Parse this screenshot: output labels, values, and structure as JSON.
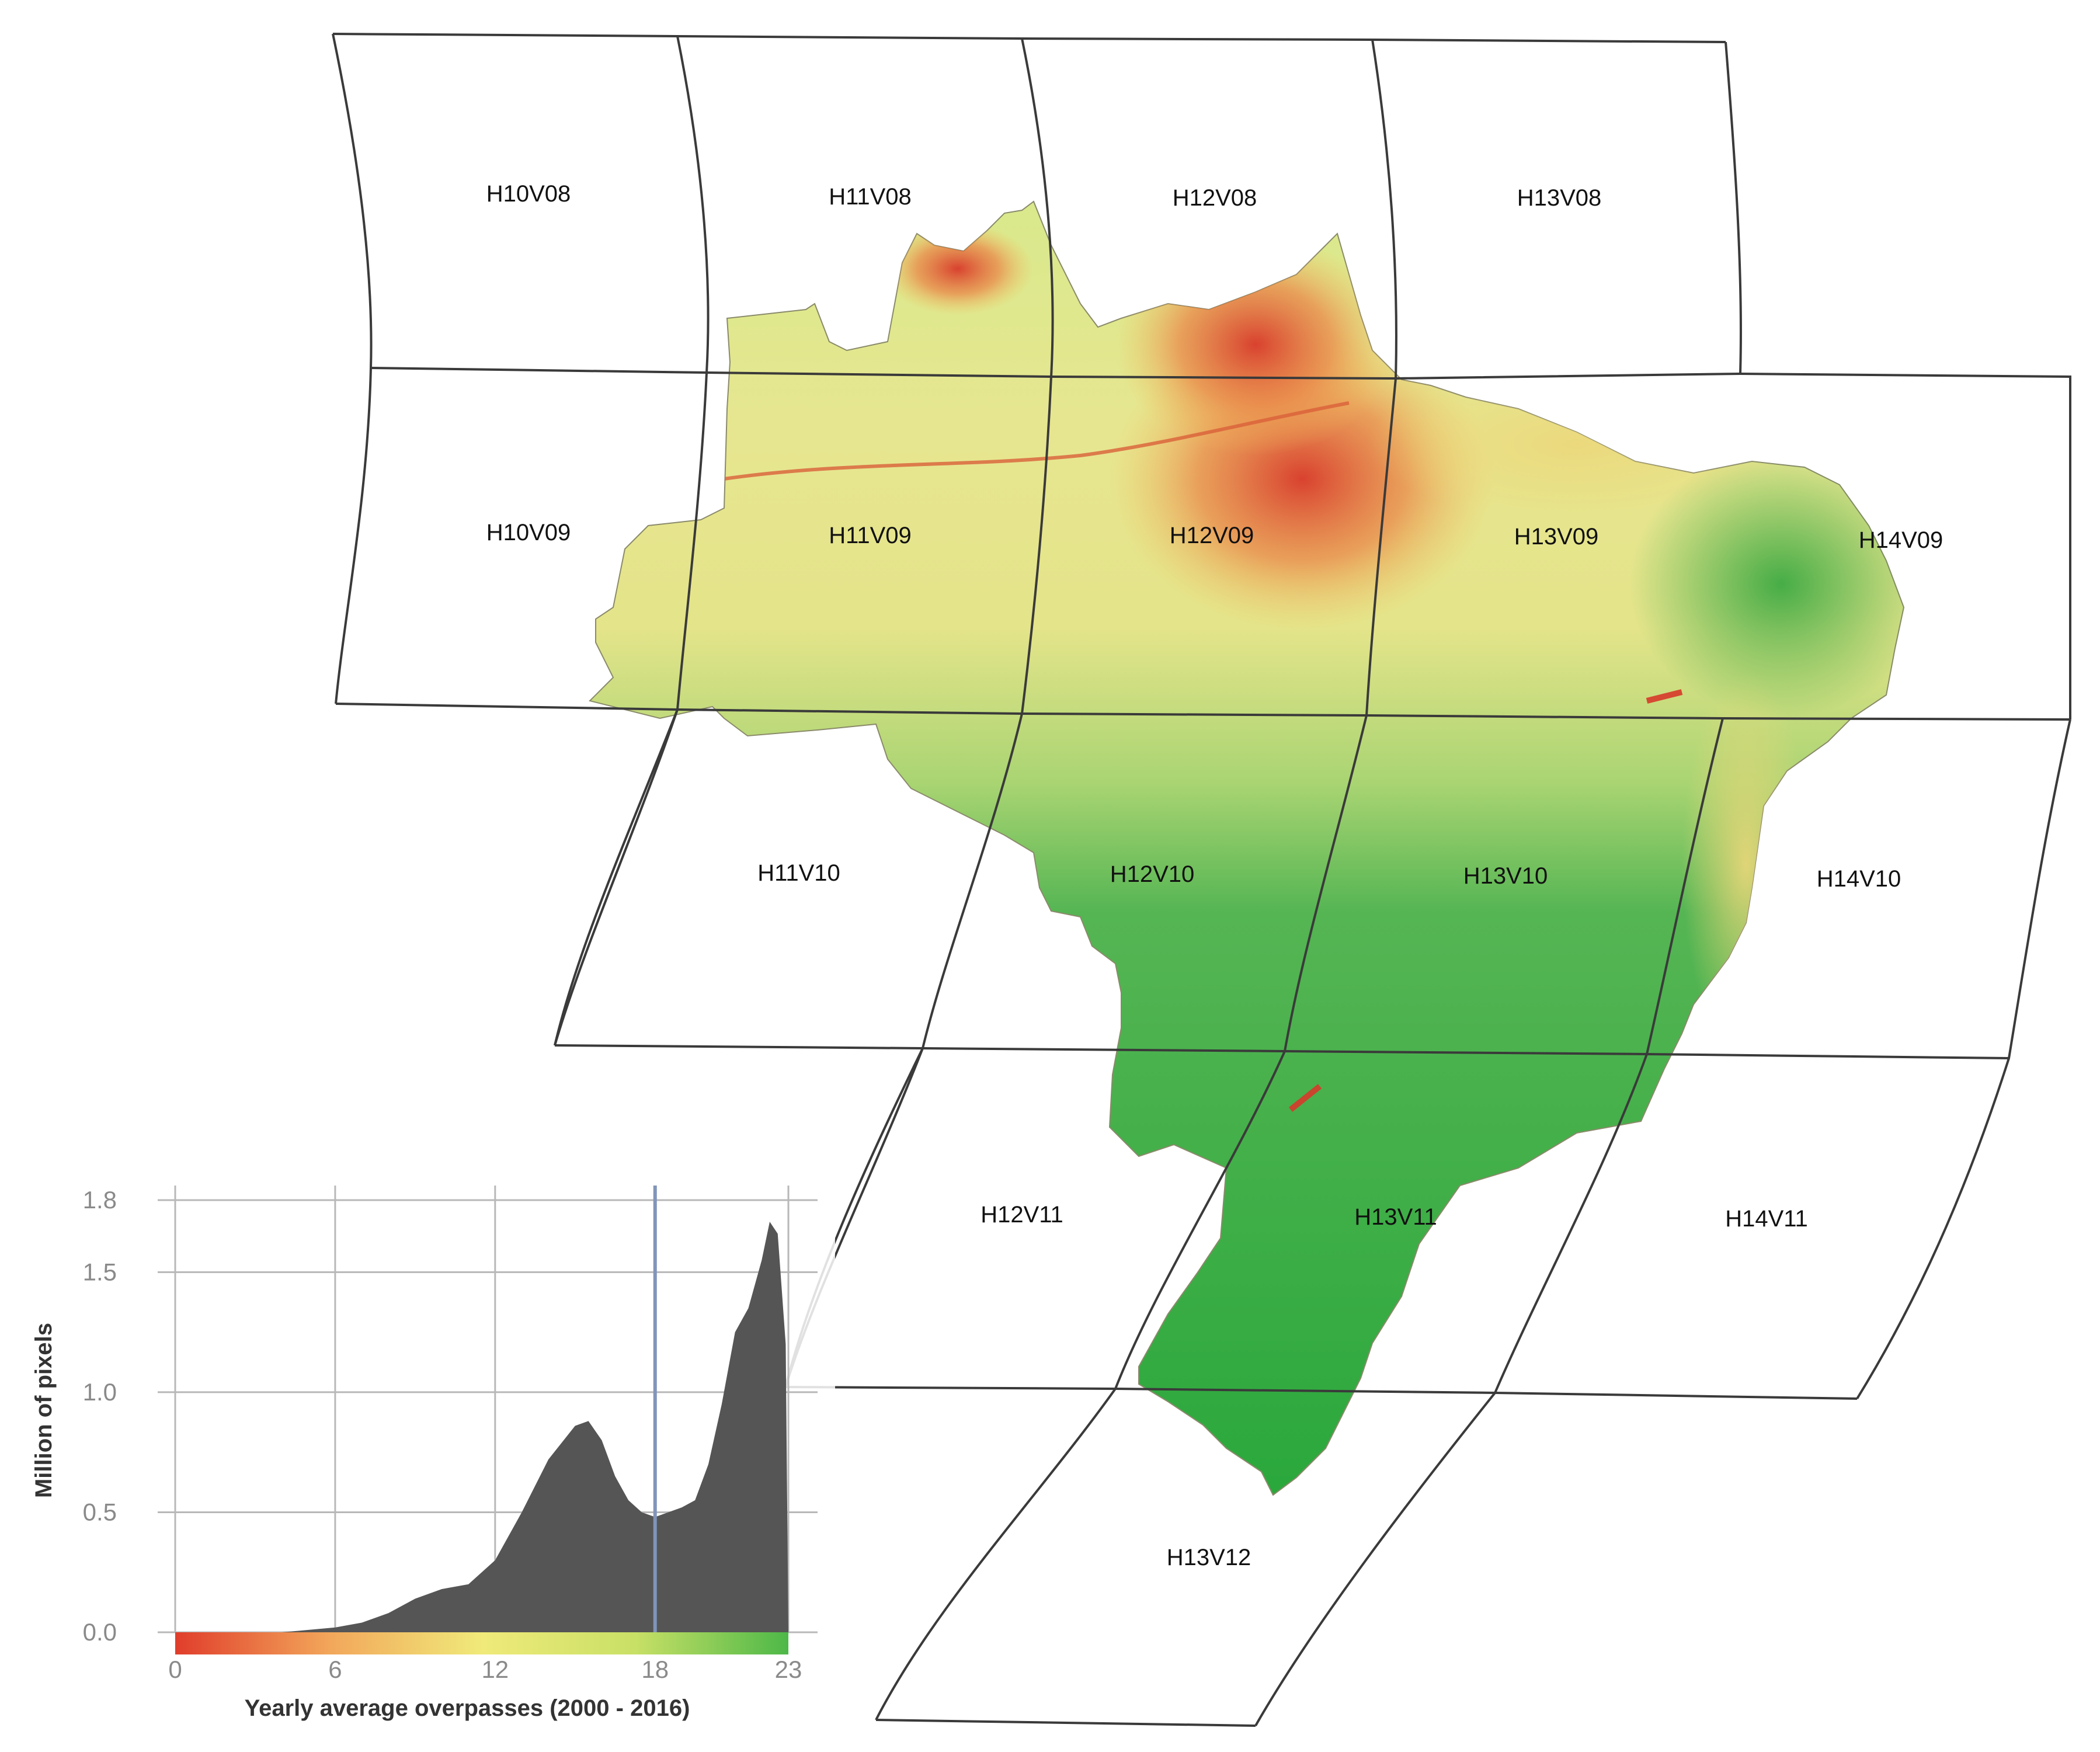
{
  "map": {
    "tiles": [
      {
        "id": "H10V08"
      },
      {
        "id": "H11V08"
      },
      {
        "id": "H12V08"
      },
      {
        "id": "H13V08"
      },
      {
        "id": "H10V09"
      },
      {
        "id": "H11V09"
      },
      {
        "id": "H12V09"
      },
      {
        "id": "H13V09"
      },
      {
        "id": "H14V09"
      },
      {
        "id": "H11V10"
      },
      {
        "id": "H12V10"
      },
      {
        "id": "H13V10"
      },
      {
        "id": "H14V10"
      },
      {
        "id": "H12V11"
      },
      {
        "id": "H13V11"
      },
      {
        "id": "H14V11"
      },
      {
        "id": "H13V12"
      }
    ],
    "colors": {
      "grid_line": "#3a3a3a",
      "low": "#e03d2b",
      "mid": "#e9e98a",
      "high": "#2aa83c"
    }
  },
  "chart_data": {
    "type": "area",
    "title": "",
    "xlabel": "Yearly average overpasses (2000 - 2016)",
    "ylabel": "Million of pixels",
    "xlim": [
      0,
      23
    ],
    "ylim": [
      0,
      1.8
    ],
    "x_ticks": [
      "0",
      "6",
      "12",
      "18",
      "23"
    ],
    "y_ticks": [
      "0.0",
      "0.5",
      "1.0",
      "1.5",
      "1.8"
    ],
    "marker_line_x": 18,
    "fill_color": "#555555",
    "marker_color": "#8095b8",
    "colorbar": [
      "#e03d2b",
      "#f2a65a",
      "#f0ea7a",
      "#c8e066",
      "#4db848"
    ],
    "x": [
      0,
      1,
      2,
      3,
      4,
      5,
      6,
      7,
      8,
      9,
      10,
      11,
      12,
      13,
      14,
      15,
      15.5,
      16,
      16.5,
      17,
      17.5,
      18,
      19,
      19.5,
      20,
      20.5,
      21,
      21.5,
      22,
      22.3,
      22.6,
      22.9,
      23
    ],
    "values": [
      0.0,
      0.0,
      0.0,
      0.0,
      0.0,
      0.01,
      0.02,
      0.04,
      0.08,
      0.14,
      0.18,
      0.2,
      0.3,
      0.5,
      0.72,
      0.86,
      0.88,
      0.8,
      0.65,
      0.55,
      0.5,
      0.48,
      0.52,
      0.55,
      0.7,
      0.95,
      1.25,
      1.35,
      1.55,
      1.71,
      1.66,
      1.2,
      0.0
    ]
  }
}
